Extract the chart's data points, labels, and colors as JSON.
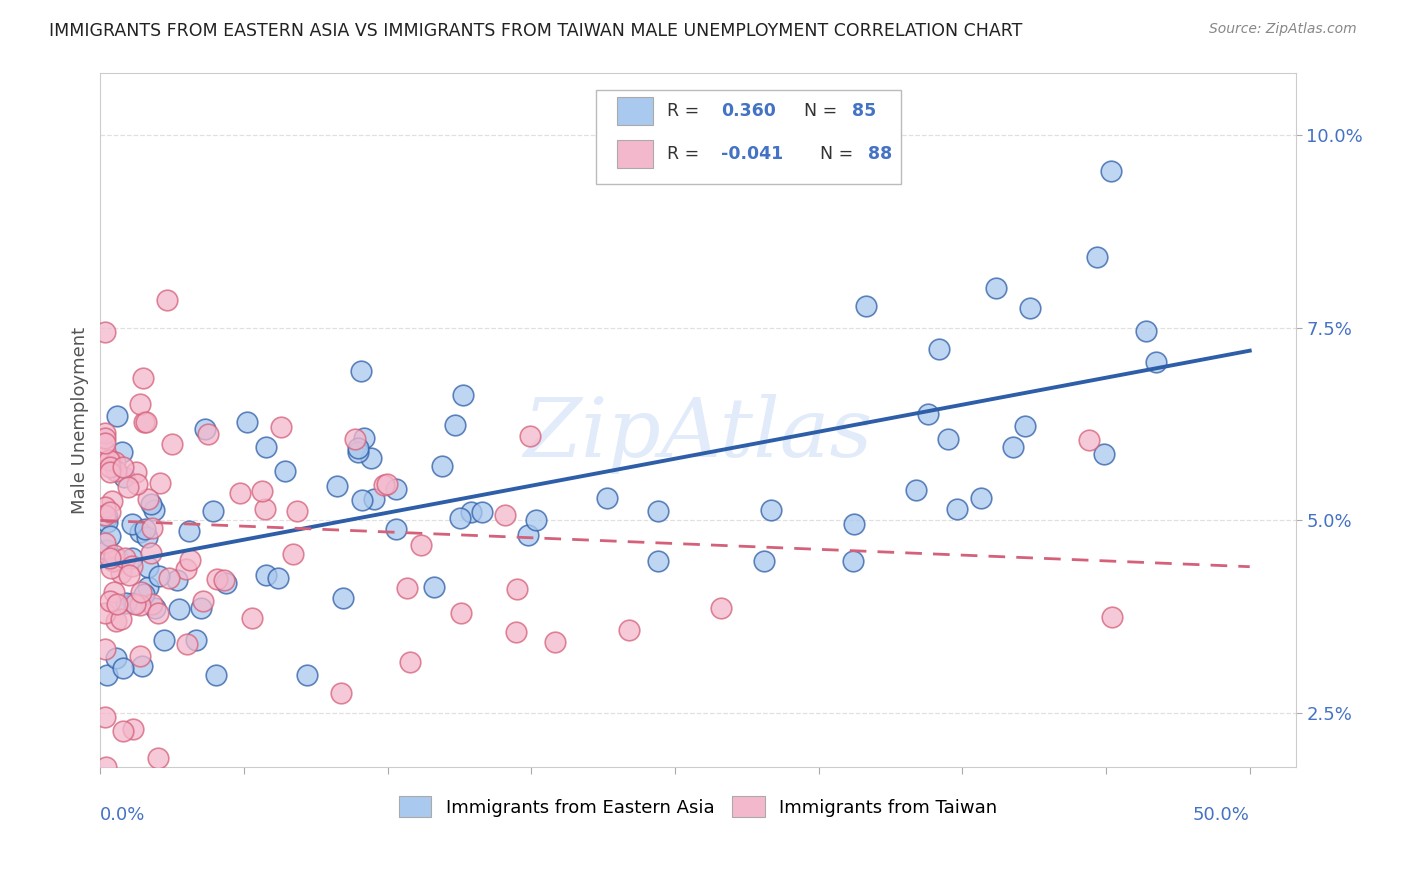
{
  "title": "IMMIGRANTS FROM EASTERN ASIA VS IMMIGRANTS FROM TAIWAN MALE UNEMPLOYMENT CORRELATION CHART",
  "source": "Source: ZipAtlas.com",
  "ylabel": "Male Unemployment",
  "xlim": [
    0.0,
    0.52
  ],
  "ylim": [
    0.018,
    0.108
  ],
  "yticks": [
    0.025,
    0.05,
    0.075,
    0.1
  ],
  "ytick_labels": [
    "2.5%",
    "5.0%",
    "7.5%",
    "10.0%"
  ],
  "xticks": [
    0.0,
    0.0625,
    0.125,
    0.1875,
    0.25,
    0.3125,
    0.375,
    0.4375,
    0.5
  ],
  "series1_color": "#aac9ee",
  "series2_color": "#f4b8cc",
  "trend1_color": "#2e5ea8",
  "trend2_color": "#d4607a",
  "background_color": "#ffffff",
  "watermark_color": "#d0dff5",
  "legend_box_color": "#dddddd",
  "title_color": "#222222",
  "ylabel_color": "#555555",
  "tick_color": "#4472c4",
  "grid_color": "#e0e0e0"
}
